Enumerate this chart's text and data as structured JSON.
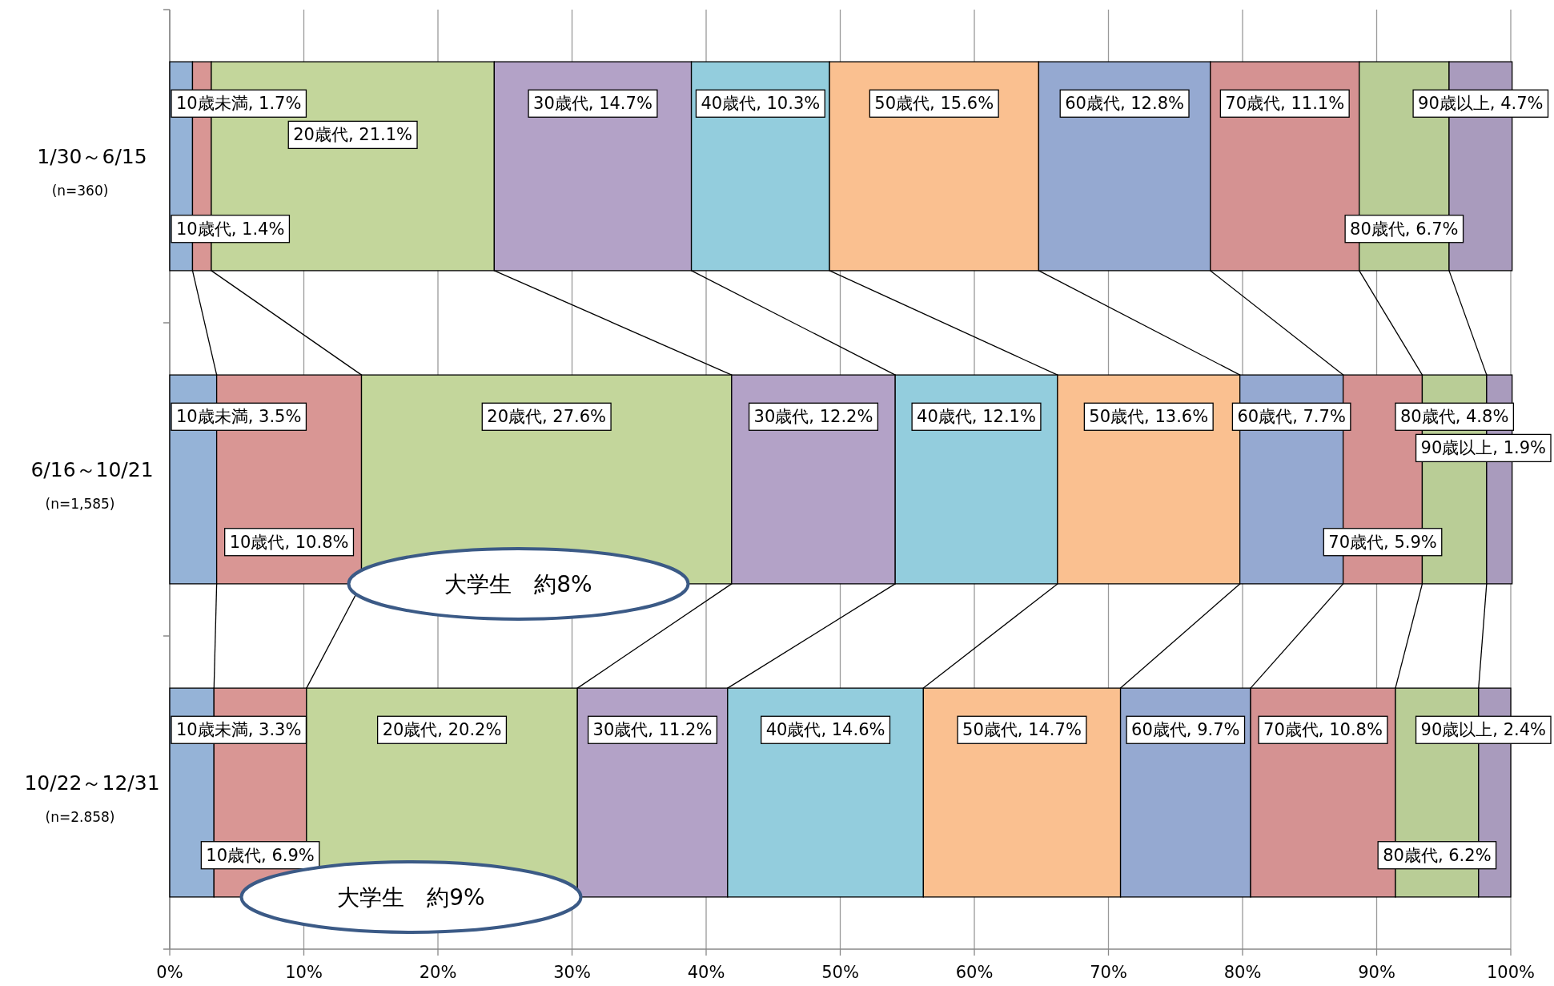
{
  "chart_data": {
    "type": "bar",
    "orientation": "horizontal",
    "stacked": true,
    "grid": "x",
    "categories": [
      "1/30～6/15",
      "6/16～10/21",
      "10/22～12/31"
    ],
    "xlim": [
      0,
      100
    ],
    "xticks": [
      {
        "value": 0,
        "label": "0%"
      },
      {
        "value": 10,
        "label": "10%"
      },
      {
        "value": 20,
        "label": "20%"
      },
      {
        "value": 30,
        "label": "30%"
      },
      {
        "value": 40,
        "label": "40%"
      },
      {
        "value": 50,
        "label": "50%"
      },
      {
        "value": 60,
        "label": "60%"
      },
      {
        "value": 70,
        "label": "70%"
      },
      {
        "value": 80,
        "label": "80%"
      },
      {
        "value": 90,
        "label": "90%"
      },
      {
        "value": 100,
        "label": "100%"
      }
    ],
    "series": [
      {
        "color": "#95b3d7",
        "values": [
          1.7,
          3.5,
          3.3
        ],
        "value_labels": [
          "10歳未満, 1.7%",
          "10歳未満, 3.5%",
          "10歳未満, 3.3%"
        ]
      },
      {
        "color": "#d99694",
        "values": [
          1.4,
          10.8,
          6.9
        ],
        "value_labels": [
          "10歳代, 1.4%",
          "10歳代, 10.8%",
          "10歳代, 6.9%"
        ]
      },
      {
        "color": "#c3d69b",
        "values": [
          21.1,
          27.6,
          20.2
        ],
        "value_labels": [
          "20歳代, 21.1%",
          "20歳代, 27.6%",
          "20歳代, 20.2%"
        ]
      },
      {
        "color": "#b3a2c7",
        "values": [
          14.7,
          12.2,
          11.2
        ],
        "value_labels": [
          "30歳代, 14.7%",
          "30歳代, 12.2%",
          "30歳代, 11.2%"
        ]
      },
      {
        "color": "#93cddd",
        "values": [
          10.3,
          12.1,
          14.6
        ],
        "value_labels": [
          "40歳代, 10.3%",
          "40歳代, 12.1%",
          "40歳代, 14.6%"
        ]
      },
      {
        "color": "#fac090",
        "values": [
          15.6,
          13.6,
          14.7
        ],
        "value_labels": [
          "50歳代, 15.6%",
          "50歳代, 13.6%",
          "50歳代, 14.7%"
        ]
      },
      {
        "color": "#95a9d1",
        "values": [
          12.8,
          7.7,
          9.7
        ],
        "value_labels": [
          "60歳代, 12.8%",
          "60歳代, 7.7%",
          "60歳代, 9.7%"
        ]
      },
      {
        "color": "#d59292",
        "values": [
          11.1,
          5.9,
          10.8
        ],
        "value_labels": [
          "70歳代, 11.1%",
          "70歳代, 5.9%",
          "70歳代, 10.8%"
        ]
      },
      {
        "color": "#b9cd96",
        "values": [
          6.7,
          4.8,
          6.2
        ],
        "value_labels": [
          "80歳代, 6.7%",
          "80歳代, 4.8%",
          "80歳代, 6.2%"
        ]
      },
      {
        "color": "#a99bbd",
        "values": [
          4.7,
          1.9,
          2.4
        ],
        "value_labels": [
          "90歳以上, 4.7%",
          "90歳以上, 1.9%",
          "90歳以上, 2.4%"
        ]
      }
    ],
    "annotations": [
      "(n=360)",
      "(n=1,585)",
      "(n=2.858)",
      "大学生　約8%",
      "大学生　約9%"
    ]
  }
}
